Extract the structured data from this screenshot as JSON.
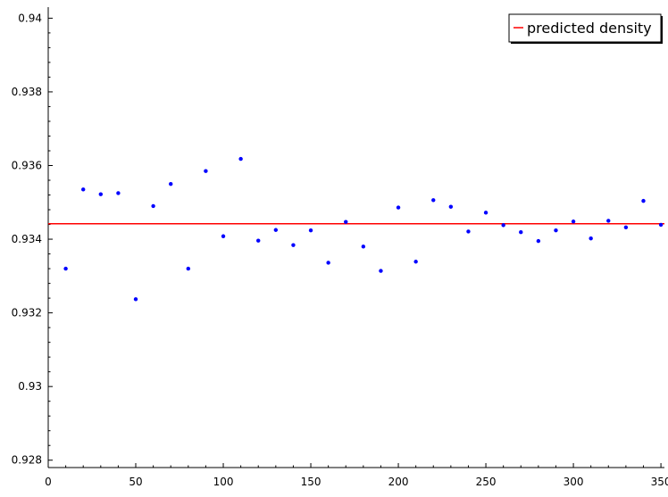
{
  "chart_data": {
    "type": "scatter",
    "title": "",
    "xlabel": "",
    "ylabel": "",
    "xlim": [
      0,
      352
    ],
    "ylim": [
      0.9278,
      0.9403
    ],
    "x_ticks": [
      0,
      50,
      100,
      150,
      200,
      250,
      300,
      350
    ],
    "y_ticks": [
      0.928,
      0.93,
      0.932,
      0.934,
      0.936,
      0.938,
      0.94
    ],
    "x_tick_labels": [
      "0",
      "50",
      "100",
      "150",
      "200",
      "250",
      "300",
      "350"
    ],
    "y_tick_labels": [
      "0.928",
      "0.93",
      "0.932",
      "0.934",
      "0.936",
      "0.938",
      "0.94"
    ],
    "grid": false,
    "legend_placement": "top-right",
    "series": [
      {
        "type": "scatter",
        "color": "#0000ff",
        "points": [
          {
            "x": 10,
            "y": 0.9332
          },
          {
            "x": 20,
            "y": 0.93535
          },
          {
            "x": 30,
            "y": 0.93522
          },
          {
            "x": 40,
            "y": 0.93525
          },
          {
            "x": 50,
            "y": 0.93237
          },
          {
            "x": 60,
            "y": 0.9349
          },
          {
            "x": 70,
            "y": 0.9355
          },
          {
            "x": 80,
            "y": 0.9332
          },
          {
            "x": 90,
            "y": 0.93585
          },
          {
            "x": 100,
            "y": 0.93408
          },
          {
            "x": 110,
            "y": 0.93618
          },
          {
            "x": 120,
            "y": 0.93396
          },
          {
            "x": 130,
            "y": 0.93425
          },
          {
            "x": 140,
            "y": 0.93384
          },
          {
            "x": 150,
            "y": 0.93424
          },
          {
            "x": 160,
            "y": 0.93336
          },
          {
            "x": 170,
            "y": 0.93447
          },
          {
            "x": 180,
            "y": 0.9338
          },
          {
            "x": 190,
            "y": 0.93314
          },
          {
            "x": 200,
            "y": 0.93486
          },
          {
            "x": 210,
            "y": 0.93339
          },
          {
            "x": 220,
            "y": 0.93506
          },
          {
            "x": 230,
            "y": 0.93488
          },
          {
            "x": 240,
            "y": 0.93421
          },
          {
            "x": 250,
            "y": 0.93472
          },
          {
            "x": 260,
            "y": 0.93438
          },
          {
            "x": 270,
            "y": 0.93419
          },
          {
            "x": 280,
            "y": 0.93395
          },
          {
            "x": 290,
            "y": 0.93424
          },
          {
            "x": 300,
            "y": 0.93448
          },
          {
            "x": 310,
            "y": 0.93402
          },
          {
            "x": 320,
            "y": 0.9345
          },
          {
            "x": 330,
            "y": 0.93432
          },
          {
            "x": 340,
            "y": 0.93504
          },
          {
            "x": 350,
            "y": 0.93439
          }
        ]
      },
      {
        "name": "predicted density",
        "type": "line",
        "color": "#ff0000",
        "y": 0.93442
      }
    ]
  }
}
